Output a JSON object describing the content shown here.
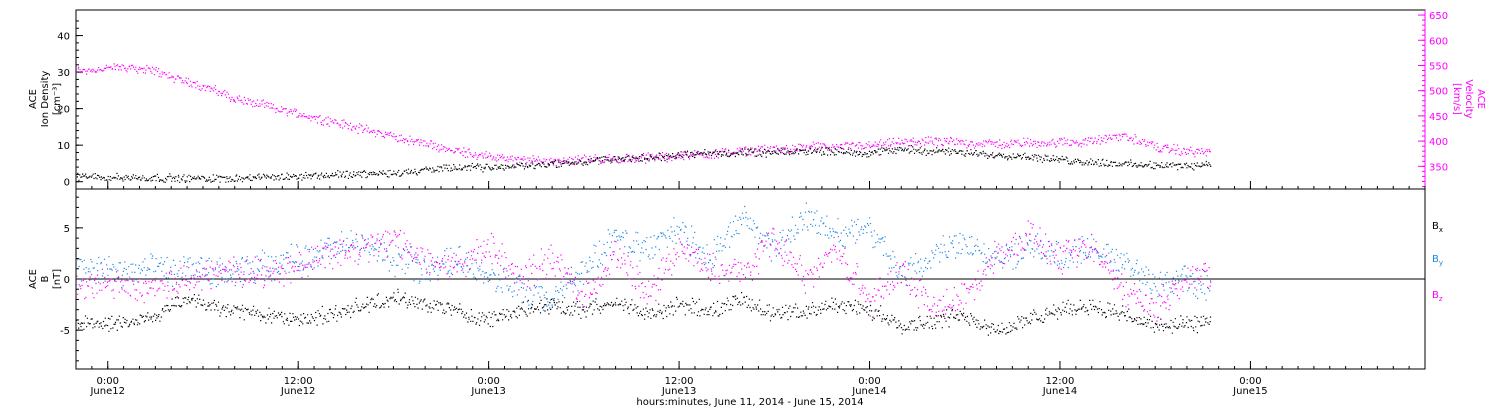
{
  "colors": {
    "black": "#000000",
    "magenta": "#ff00ff",
    "blue": "#1e88e5",
    "background": "#ffffff"
  },
  "xaxis": {
    "title": "hours:minutes, June 11, 2014 - June 15, 2014",
    "range_hours": [
      -2,
      83
    ],
    "ticks": [
      {
        "hour": 0,
        "time": "0:00",
        "day": "June12"
      },
      {
        "hour": 12,
        "time": "12:00",
        "day": "June12"
      },
      {
        "hour": 24,
        "time": "0:00",
        "day": "June13"
      },
      {
        "hour": 36,
        "time": "12:00",
        "day": "June13"
      },
      {
        "hour": 48,
        "time": "0:00",
        "day": "June14"
      },
      {
        "hour": 60,
        "time": "12:00",
        "day": "June14"
      },
      {
        "hour": 72,
        "time": "0:00",
        "day": "June15"
      }
    ],
    "minor_step_hours": 1
  },
  "chart_data": [
    {
      "type": "scatter",
      "panel": "top",
      "left_axis": {
        "label_line1": "ACE",
        "label_line2": "Ion Density",
        "label_units": "[cm⁻³]",
        "ylim": [
          -2,
          47
        ],
        "ticks": [
          0,
          10,
          20,
          30,
          40
        ]
      },
      "right_axis": {
        "label_line1": "ACE",
        "label_line2": "Velocity",
        "label_units": "[km/s]",
        "ylim": [
          305,
          660
        ],
        "ticks": [
          350,
          400,
          450,
          500,
          550,
          600,
          650
        ]
      },
      "series": [
        {
          "color_key": "black",
          "axis": "left",
          "x": [
            -2,
            2,
            6,
            10,
            14,
            18,
            22,
            24,
            26,
            28,
            30,
            32,
            34,
            36,
            38,
            40,
            42,
            44,
            46,
            48,
            50,
            52,
            54,
            56,
            58,
            60,
            62,
            64,
            66,
            68,
            69.5
          ],
          "y": [
            1.5,
            1.2,
            1.0,
            1.3,
            2.0,
            2.5,
            4.0,
            4.0,
            4.5,
            5.0,
            5.5,
            6.5,
            6.5,
            7.5,
            8.0,
            8.0,
            8.0,
            8.5,
            8.5,
            8.0,
            9.0,
            8.5,
            8.0,
            7.5,
            7.0,
            6.0,
            5.5,
            5.0,
            4.5,
            4.5,
            5.0
          ]
        },
        {
          "color_key": "magenta",
          "axis": "right",
          "x": [
            -2,
            0,
            1,
            2,
            3,
            4,
            6,
            8,
            10,
            12,
            14,
            16,
            18,
            20,
            22,
            24,
            26,
            28,
            30,
            32,
            34,
            36,
            38,
            40,
            42,
            44,
            46,
            48,
            50,
            52,
            54,
            56,
            58,
            60,
            62,
            64,
            66,
            68,
            69.5
          ],
          "y": [
            540,
            545,
            548,
            545,
            540,
            528,
            510,
            485,
            470,
            455,
            440,
            425,
            410,
            395,
            382,
            370,
            362,
            362,
            365,
            365,
            368,
            372,
            376,
            380,
            385,
            388,
            390,
            392,
            398,
            400,
            398,
            395,
            398,
            398,
            400,
            412,
            390,
            380,
            380
          ]
        }
      ]
    },
    {
      "type": "scatter",
      "panel": "bottom",
      "left_axis": {
        "label_line1": "ACE",
        "label_line2": "B",
        "label_units": "[nT]",
        "ylim": [
          -8.8,
          8.8
        ],
        "ticks": [
          -5,
          0,
          5
        ]
      },
      "legend": [
        {
          "text": "B",
          "sub": "x",
          "color_key": "black"
        },
        {
          "text": "B",
          "sub": "y",
          "color_key": "blue"
        },
        {
          "text": "B",
          "sub": "z",
          "color_key": "magenta"
        }
      ],
      "series": [
        {
          "color_key": "black",
          "x": [
            -2,
            0,
            2,
            3,
            4,
            5,
            6,
            8,
            10,
            12,
            14,
            16,
            18,
            20,
            22,
            24,
            26,
            28,
            30,
            32,
            34,
            36,
            38,
            40,
            42,
            44,
            46,
            48,
            50,
            52,
            54,
            56,
            58,
            60,
            62,
            64,
            66,
            68,
            69.5
          ],
          "y": [
            -4.2,
            -4.3,
            -4.0,
            -3.5,
            -2.5,
            -2.0,
            -2.5,
            -3.0,
            -3.5,
            -3.8,
            -3.5,
            -2.5,
            -1.8,
            -2.5,
            -3.0,
            -4.0,
            -3.0,
            -2.5,
            -3.0,
            -2.0,
            -3.5,
            -2.5,
            -3.0,
            -2.0,
            -3.5,
            -3.0,
            -2.5,
            -3.0,
            -4.5,
            -4.0,
            -3.5,
            -5.0,
            -4.0,
            -3.0,
            -2.5,
            -3.5,
            -4.5,
            -4.5,
            -4.0
          ]
        },
        {
          "color_key": "blue",
          "x": [
            -2,
            0,
            1,
            2,
            3,
            4,
            5,
            6,
            8,
            10,
            12,
            14,
            16,
            18,
            20,
            22,
            24,
            26,
            28,
            30,
            32,
            34,
            36,
            38,
            40,
            42,
            44,
            46,
            48,
            50,
            52,
            54,
            56,
            58,
            60,
            62,
            64,
            66,
            68,
            69.5
          ],
          "y": [
            1.0,
            0.8,
            0.5,
            0.8,
            1.2,
            0.5,
            1.0,
            0.8,
            0.5,
            1.5,
            2.0,
            3.0,
            3.5,
            2.0,
            1.0,
            2.0,
            0.5,
            -1.0,
            -2.0,
            1.0,
            4.0,
            3.0,
            5.0,
            2.0,
            6.0,
            3.0,
            6.0,
            4.5,
            5.0,
            0.0,
            2.5,
            4.0,
            1.5,
            3.5,
            2.0,
            3.0,
            1.5,
            -0.5,
            0.0,
            -1.0
          ]
        },
        {
          "color_key": "magenta",
          "x": [
            -2,
            0,
            2,
            3,
            4,
            6,
            8,
            10,
            12,
            14,
            16,
            18,
            20,
            22,
            24,
            26,
            28,
            30,
            32,
            34,
            36,
            38,
            40,
            42,
            44,
            46,
            48,
            50,
            52,
            54,
            56,
            58,
            60,
            62,
            64,
            66,
            68,
            69.5
          ],
          "y": [
            -0.5,
            -0.5,
            -1.0,
            -0.5,
            -0.3,
            0.5,
            1.0,
            0.5,
            1.5,
            2.5,
            3.0,
            4.0,
            2.0,
            1.0,
            3.5,
            0.0,
            2.0,
            -2.0,
            2.5,
            -1.5,
            3.0,
            1.0,
            0.5,
            4.0,
            0.0,
            3.0,
            -2.0,
            1.0,
            -3.0,
            -1.5,
            2.5,
            4.5,
            2.0,
            3.0,
            -1.0,
            -3.0,
            0.5,
            0.0
          ]
        }
      ]
    }
  ]
}
